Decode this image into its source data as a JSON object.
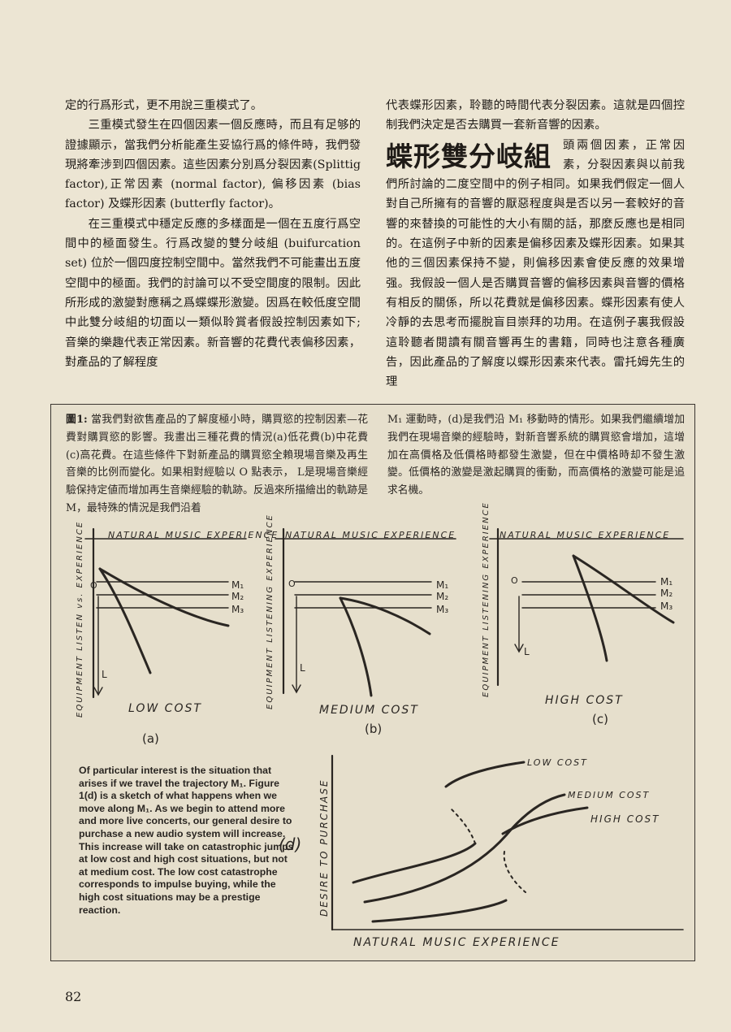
{
  "page": {
    "number": "82",
    "left_col": {
      "p1": "定的行爲形式，更不用說三重模式了。",
      "p2": "三重模式發生在四個因素一個反應時，而且有足够的證據顯示，當我們分析能產生妥協行爲的條件時，我們發現將牽涉到四個因素。這些因素分別爲分裂因素(Splittig factor),正常因素 (normal factor), 偏移因素 (bias factor) 及蝶形因素 (butterfly factor)。",
      "p3": "在三重模式中穩定反應的多樣面是一個在五度行爲空間中的極面發生。行爲改變的雙分岐組 (buifurcation set) 位於一個四度控制空間中。當然我們不可能畫出五度空間中的極面。我們的討論可以不受空間度的限制。因此所形成的激變對應稱之爲蝶蝶形激變。因爲在較低度空間中此雙分岐組的切面以一類似聆賞者假設控制因素如下; 音樂的樂趣代表正常因素。新音響的花費代表偏移因素，對產品的了解程度"
    },
    "right_col": {
      "p1": "代表蝶形因素，聆聽的時間代表分裂因素。這就是四個控制我們決定是否去購買一套新音響的因素。",
      "heading": "蝶形雙分岐組",
      "p2": "頭兩個因素，正常因素，分裂因素與以前我們所討論的二度空間中的例子相同。如果我們假定一個人對自己所擁有的音響的厭惡程度與是否以另一套較好的音響的來替換的可能性的大小有關的話，那麼反應也是相同的。在這例子中新的因素是偏移因素及蝶形因素。如果其他的三個因素保持不變，則偏移因素會使反應的效果增强。我假設一個人是否購買音響的偏移因素與音響的價格有相反的關係，所以花費就是偏移因素。蝶形因素有使人冷靜的去思考而擺脫盲目崇拜的功用。在這例子裏我假設這聆聽者閱讀有關音響再生的書籍，同時也注意各種廣告，因此產品的了解度以蝶形因素來代表。雷托姆先生的理"
    },
    "caption": {
      "label": "圖1:",
      "left": "當我們對欲售產品的了解度極小時，購買慾的控制因素—花費對購買慾的影響。我畫出三種花費的情況(a)低花費(b)中花費(c)高花費。在這些條件下對新產品的購買慾全賴現場音樂及再生音樂的比例而變化。如果相對經驗以 O 點表示， L是現場音樂經驗保持定値而增加再生音樂經驗的軌跡。反過來所描繪出的軌跡是M，最特殊的情況是我們沿着",
      "right": "M₁ 運動時，(d)是我們沿 M₁ 移動時的情形。如果我們繼續增加我們在現場音樂的經驗時，對新音響系統的購買慾會增加，這增加在高價格及低價格時都發生激變，但在中價格時却不發生激變。低價格的激變是激起購買的衝動，而高價格的激變可能是追求名機。",
      "english": "Of particular interest is the situation that arises if we travel the trajectory M₁. Figure 1(d) is a sketch of what happens when we move along M₁. As we begin to attend more and more live concerts, our general desire to purchase a new audio system will increase. This increase will take on catastrophic jumps at low cost and high cost situations, but not at medium cost. The low cost catastrophe corresponds to impulse buying, while the high cost situations may be a prestige reaction."
    },
    "plots": {
      "x_axis": "NATURAL MUSIC EXPERIENCE",
      "y_axis_a": "EQUIPMENT LISTEN vs. EXPERIENCE",
      "y_axis_bc": "EQUIPMENT LISTENING EXPERIENCE",
      "origin": "O",
      "line_l": "L",
      "m1": "M₁",
      "m2": "M₂",
      "m3": "M₃",
      "a_title": "LOW COST",
      "a_tag": "(a)",
      "b_title": "MEDIUM COST",
      "b_tag": "(b)",
      "c_title": "HIGH COST",
      "c_tag": "(c)",
      "d_tag": "(d)",
      "d_y_axis": "DESIRE TO PURCHASE",
      "d_x_axis": "NATURAL MUSIC EXPERIENCE",
      "d_low": "LOW COST",
      "d_medium": "MEDIUM COST",
      "d_high": "HIGH COST"
    }
  }
}
